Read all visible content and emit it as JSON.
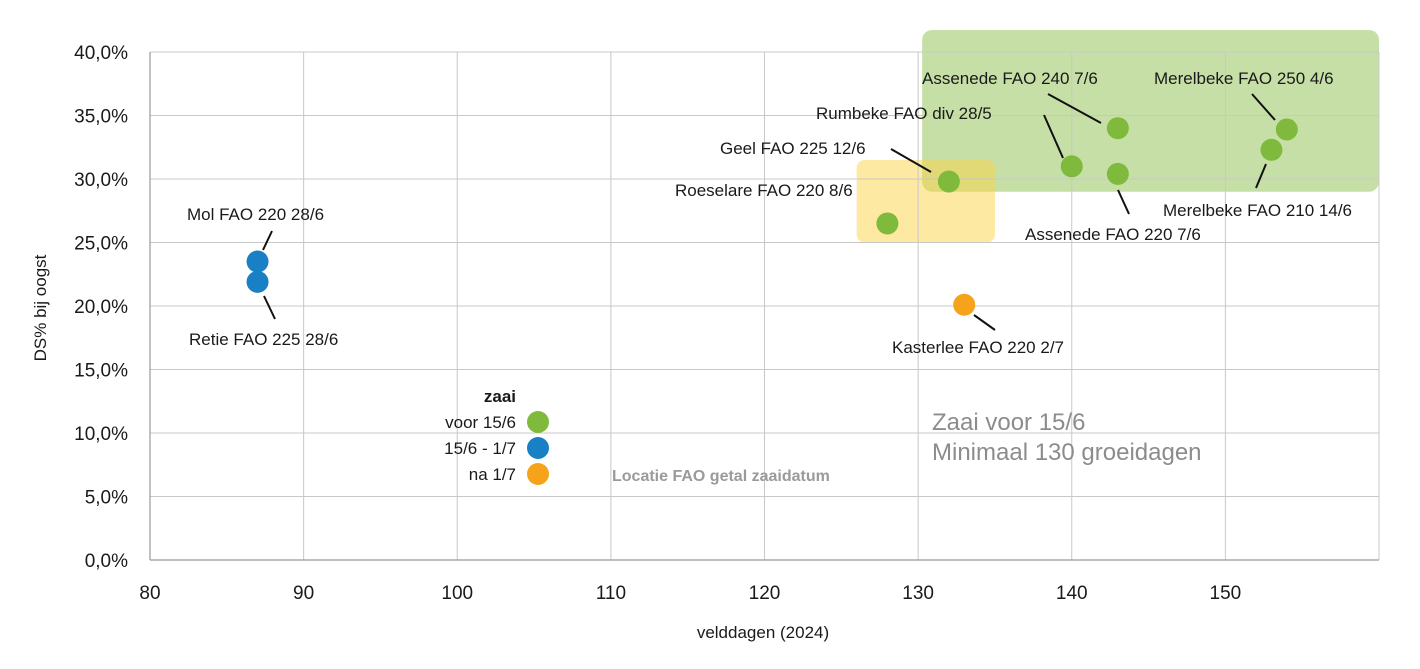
{
  "chart_data": {
    "type": "scatter",
    "xlabel": "velddagen (2024)",
    "ylabel": "DS% bij oogst",
    "xlim": [
      80,
      160
    ],
    "ylim": [
      0,
      0.4
    ],
    "x_ticks": [
      80,
      90,
      100,
      110,
      120,
      130,
      140,
      150
    ],
    "x_tick_labels": [
      "80",
      "90",
      "100",
      "110",
      "120",
      "130",
      "140",
      "150"
    ],
    "y_ticks": [
      0,
      0.05,
      0.1,
      0.15,
      0.2,
      0.25,
      0.3,
      0.35,
      0.4
    ],
    "y_tick_labels": [
      "0,0%",
      "5,0%",
      "10,0%",
      "15,0%",
      "20,0%",
      "25,0%",
      "30,0%",
      "35,0%",
      "40,0%"
    ],
    "grid": true,
    "legend": {
      "title": "zaai",
      "placement": "lower-left-center",
      "entries": [
        {
          "label": "voor 15/6",
          "color": "#7fba3c"
        },
        {
          "label": "15/6 - 1/7",
          "color": "#1a80c6"
        },
        {
          "label": "na 1/7",
          "color": "#f5a31a"
        }
      ],
      "note": "Locatie FAO getal zaaidatum"
    },
    "zones": [
      {
        "color": "#8dc04e",
        "opacity": 0.5,
        "x": [
          130,
          160
        ],
        "y": [
          0.29,
          0.4
        ]
      },
      {
        "color": "#fbd444",
        "opacity": 0.5,
        "x": [
          126,
          135
        ],
        "y": [
          0.25,
          0.315
        ]
      }
    ],
    "zone_text": [
      "Zaai voor 15/6",
      "Minimaal 130 groeidagen"
    ],
    "series": [
      {
        "color": "#7fba3c",
        "points": [
          {
            "x": 154,
            "y": 0.339,
            "label": "Merelbeke FAO 250 4/6"
          },
          {
            "x": 153,
            "y": 0.323,
            "label": "Merelbeke FAO 210 14/6"
          },
          {
            "x": 143,
            "y": 0.34,
            "label": "Assenede FAO 240 7/6"
          },
          {
            "x": 140,
            "y": 0.31,
            "label": "Rumbeke FAO div 28/5"
          },
          {
            "x": 143,
            "y": 0.304,
            "label": "Assenede FAO 220 7/6"
          },
          {
            "x": 132,
            "y": 0.298,
            "label": "Geel FAO 225 12/6"
          },
          {
            "x": 128,
            "y": 0.265,
            "label": "Roeselare FAO 220 8/6"
          }
        ]
      },
      {
        "color": "#1a80c6",
        "points": [
          {
            "x": 87,
            "y": 0.235,
            "label": "Mol FAO 220 28/6"
          },
          {
            "x": 87,
            "y": 0.219,
            "label": "Retie FAO 225 28/6"
          }
        ]
      },
      {
        "color": "#f5a31a",
        "points": [
          {
            "x": 133,
            "y": 0.201,
            "label": "Kasterlee FAO 220 2/7"
          }
        ]
      }
    ]
  }
}
